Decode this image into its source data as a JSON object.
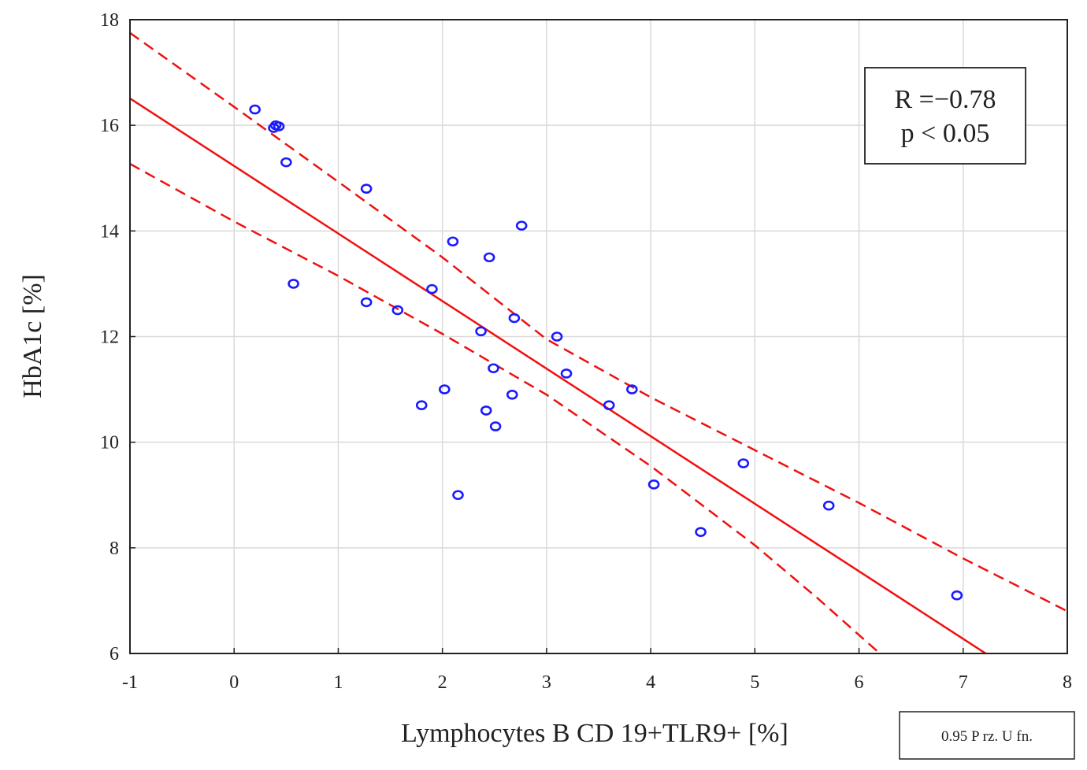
{
  "chart_data": {
    "type": "scatter",
    "xlabel": "Lymphocytes B CD 19+TLR9+ [%]",
    "ylabel": "HbA1c [%]",
    "xlim": [
      -1,
      8
    ],
    "ylim": [
      6,
      18
    ],
    "xticks": [
      -1,
      0,
      1,
      2,
      3,
      4,
      5,
      6,
      7,
      8
    ],
    "yticks": [
      6,
      8,
      10,
      12,
      14,
      16,
      18
    ],
    "grid": true,
    "points": [
      {
        "x": 0.2,
        "y": 16.3
      },
      {
        "x": 0.38,
        "y": 15.95
      },
      {
        "x": 0.4,
        "y": 16.0
      },
      {
        "x": 0.43,
        "y": 15.98
      },
      {
        "x": 0.5,
        "y": 15.3
      },
      {
        "x": 0.57,
        "y": 13.0
      },
      {
        "x": 1.27,
        "y": 14.8
      },
      {
        "x": 1.27,
        "y": 12.65
      },
      {
        "x": 1.57,
        "y": 12.5
      },
      {
        "x": 1.8,
        "y": 10.7
      },
      {
        "x": 1.9,
        "y": 12.9
      },
      {
        "x": 2.02,
        "y": 11.0
      },
      {
        "x": 2.1,
        "y": 13.8
      },
      {
        "x": 2.15,
        "y": 9.0
      },
      {
        "x": 2.37,
        "y": 12.1
      },
      {
        "x": 2.42,
        "y": 10.6
      },
      {
        "x": 2.45,
        "y": 13.5
      },
      {
        "x": 2.49,
        "y": 11.4
      },
      {
        "x": 2.51,
        "y": 10.3
      },
      {
        "x": 2.67,
        "y": 10.9
      },
      {
        "x": 2.69,
        "y": 12.35
      },
      {
        "x": 2.76,
        "y": 14.1
      },
      {
        "x": 3.1,
        "y": 12.0
      },
      {
        "x": 3.19,
        "y": 11.3
      },
      {
        "x": 3.6,
        "y": 10.7
      },
      {
        "x": 3.82,
        "y": 11.0
      },
      {
        "x": 4.03,
        "y": 9.2
      },
      {
        "x": 4.48,
        "y": 8.3
      },
      {
        "x": 4.89,
        "y": 9.6
      },
      {
        "x": 5.71,
        "y": 8.8
      },
      {
        "x": 6.94,
        "y": 7.1
      }
    ],
    "regression": {
      "intercept": 15.23,
      "slope": -1.279
    },
    "confidence_band_lower": [
      {
        "x": -1,
        "y": 15.27
      },
      {
        "x": 0,
        "y": 14.18
      },
      {
        "x": 1,
        "y": 13.15
      },
      {
        "x": 2,
        "y": 12.05
      },
      {
        "x": 3,
        "y": 10.9
      },
      {
        "x": 4,
        "y": 9.55
      },
      {
        "x": 5,
        "y": 8.05
      },
      {
        "x": 5.6,
        "y": 7.05
      },
      {
        "x": 6.2,
        "y": 6.0
      }
    ],
    "confidence_band_upper": [
      {
        "x": -1,
        "y": 17.75
      },
      {
        "x": 0,
        "y": 16.35
      },
      {
        "x": 1,
        "y": 14.93
      },
      {
        "x": 2,
        "y": 13.5
      },
      {
        "x": 3,
        "y": 11.95
      },
      {
        "x": 4,
        "y": 10.85
      },
      {
        "x": 5,
        "y": 9.85
      },
      {
        "x": 6,
        "y": 8.85
      },
      {
        "x": 7,
        "y": 7.8
      },
      {
        "x": 8,
        "y": 6.8
      }
    ],
    "stats": {
      "r_text": "R =−0.78",
      "p_text": "p < 0.05"
    },
    "fit_label": "0.95 P rz. U fn."
  },
  "colors": {
    "points": "#1a1aff",
    "fit": "#ee1111",
    "grid": "#d9d9d9",
    "axis": "#222222"
  }
}
